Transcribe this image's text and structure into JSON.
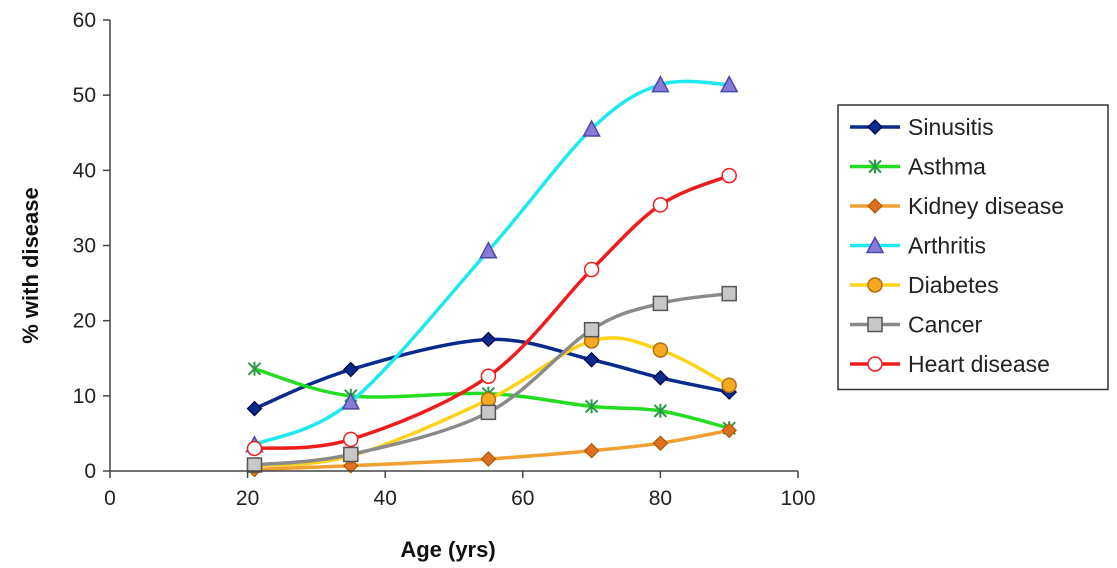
{
  "chart_data": {
    "type": "line",
    "title": "",
    "xlabel": "Age (yrs)",
    "ylabel": "% with disease",
    "xlim": [
      0,
      100
    ],
    "ylim": [
      0,
      60
    ],
    "xticks": [
      0,
      20,
      40,
      60,
      80,
      100
    ],
    "yticks": [
      0,
      10,
      20,
      30,
      40,
      50,
      60
    ],
    "grid": false,
    "legend_position": "right",
    "x": [
      21,
      35,
      55,
      70,
      80,
      90
    ],
    "series": [
      {
        "name": "Sinusitis",
        "color": "#0a2a8c",
        "marker": "diamond",
        "values": [
          8.3,
          13.5,
          17.5,
          14.8,
          12.4,
          10.5
        ]
      },
      {
        "name": "Asthma",
        "color": "#22dd22",
        "marker": "asterisk",
        "values": [
          13.6,
          10.0,
          10.3,
          8.6,
          8.0,
          5.7
        ]
      },
      {
        "name": "Kidney disease",
        "color": "#f0a030",
        "marker": "diamond",
        "values": [
          0.2,
          0.7,
          1.6,
          2.7,
          3.7,
          5.4
        ]
      },
      {
        "name": "Arthritis",
        "color": "#20e8f0",
        "marker": "triangle",
        "values": [
          3.5,
          9.2,
          29.3,
          45.5,
          51.4,
          51.4
        ]
      },
      {
        "name": "Diabetes",
        "color": "#ffd21a",
        "marker": "circle",
        "values": [
          0.7,
          2.0,
          9.5,
          17.3,
          16.1,
          11.4
        ]
      },
      {
        "name": "Cancer",
        "color": "#8a8a8a",
        "marker": "square",
        "values": [
          0.8,
          2.2,
          7.8,
          18.8,
          22.3,
          23.6
        ]
      },
      {
        "name": "Heart disease",
        "color": "#ee1c1c",
        "marker": "open-circle",
        "values": [
          3.0,
          4.2,
          12.6,
          26.8,
          35.4,
          39.3
        ]
      }
    ]
  }
}
